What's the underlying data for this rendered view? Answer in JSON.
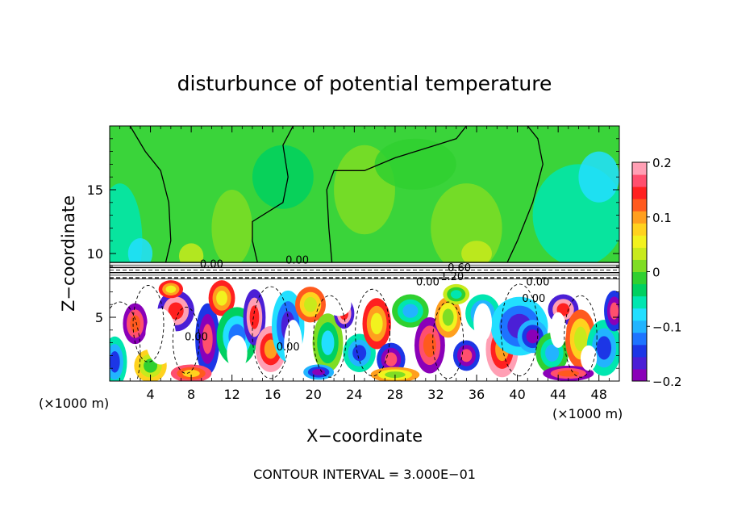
{
  "chart_data": {
    "type": "heatmap",
    "title": "disturbunce of potential temperature",
    "xlabel": "X−coordinate",
    "ylabel": "Z−coordinate",
    "x_unit_note": "(×1000 m)",
    "z_unit_note": "(×1000 m)",
    "xlim": [
      0,
      50
    ],
    "ylim": [
      0,
      20
    ],
    "x_ticks": [
      "4",
      "8",
      "12",
      "16",
      "20",
      "24",
      "28",
      "32",
      "36",
      "40",
      "44",
      "48"
    ],
    "x_tick_values": [
      4,
      8,
      12,
      16,
      20,
      24,
      28,
      32,
      36,
      40,
      44,
      48
    ],
    "y_ticks": [
      "5",
      "10",
      "15"
    ],
    "y_tick_values": [
      5,
      10,
      15
    ],
    "colorbar": {
      "range": [
        -0.2,
        0.2
      ],
      "tick_labels": [
        "0.2",
        "0.1",
        "0",
        "−0.1",
        "−0.2"
      ],
      "tick_values": [
        0.2,
        0.1,
        0,
        -0.1,
        -0.2
      ],
      "colors": [
        "#8a00b8",
        "#4b1fd6",
        "#1c36e6",
        "#1e74ff",
        "#22b4ff",
        "#22dfff",
        "#00e6b0",
        "#00d060",
        "#30d030",
        "#7fdd24",
        "#c8ea1c",
        "#f2f21e",
        "#ffd21e",
        "#ff9f1e",
        "#ff5a1e",
        "#ff2020",
        "#ff4f6e",
        "#ff9fb4"
      ]
    },
    "inversion_layer_z": [
      8,
      9.3
    ],
    "contour_labels": [
      {
        "text": "0.00",
        "x": 10,
        "z": 8.9
      },
      {
        "text": "0.00",
        "x": 18.4,
        "z": 9.2
      },
      {
        "text": "0.60",
        "x": 34.3,
        "z": 8.6
      },
      {
        "text": "1.20",
        "x": 33.6,
        "z": 7.9
      },
      {
        "text": "0.00",
        "x": 31.2,
        "z": 7.5
      },
      {
        "text": "0.00",
        "x": 42,
        "z": 7.5
      },
      {
        "text": "0.00",
        "x": 8.5,
        "z": 3.2
      },
      {
        "text": "0.00",
        "x": 17.5,
        "z": 2.4
      },
      {
        "text": "0.00",
        "x": 41.6,
        "z": 6.2
      }
    ],
    "footer": "CONTOUR INTERVAL = 3.000E−01"
  }
}
